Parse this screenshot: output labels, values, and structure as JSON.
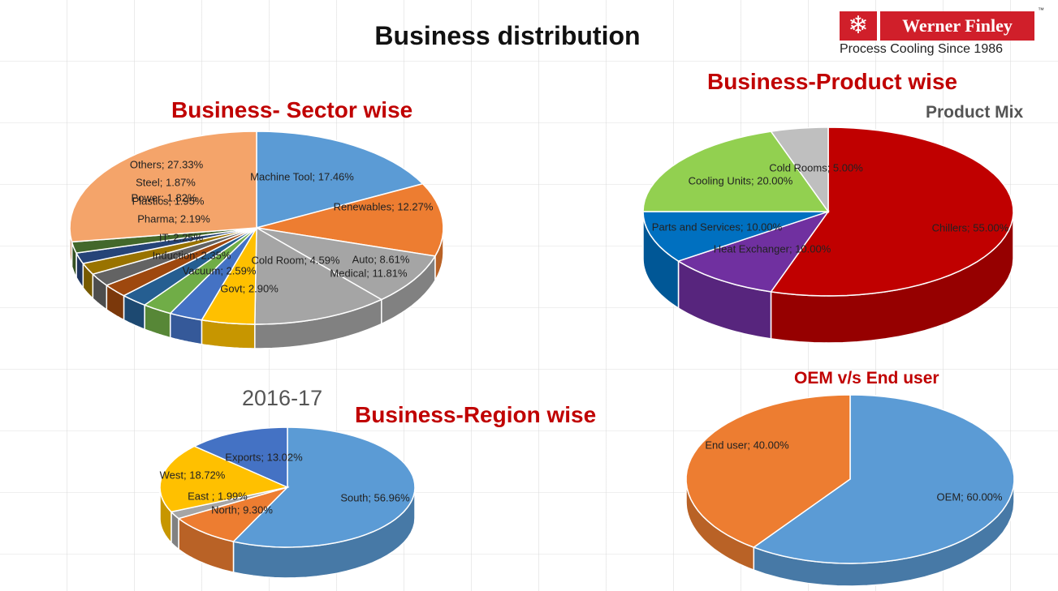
{
  "page": {
    "title": "Business distribution",
    "logo": {
      "name": "Werner Finley",
      "tagline": "Process Cooling Since 1986",
      "tm": "™"
    }
  },
  "chart_data": [
    {
      "type": "pie",
      "title": "Business- Sector wise",
      "labels": [
        "Machine Tool",
        "Renewables",
        "Auto",
        "Medical",
        "Cold Room",
        "Govt",
        "Vacuum",
        "Induction",
        "IT",
        "Pharma",
        "Plastics",
        "Power",
        "Steel",
        "Others"
      ],
      "values": [
        17.46,
        12.27,
        8.61,
        11.81,
        4.59,
        2.9,
        2.59,
        2.35,
        2.25,
        2.19,
        1.95,
        1.82,
        1.87,
        27.33
      ],
      "value_labels": [
        "Machine Tool; 17.46%",
        "Renewables; 12.27%",
        "Auto; 8.61%",
        "Medical; 11.81%",
        "Cold Room; 4.59%",
        "Govt; 2.90%",
        "Vacuum; 2.59%",
        "Induction; 2.35%",
        "IT; 2.25%",
        "Pharma; 2.19%",
        "Plastics; 1.95%",
        "Power; 1.82%",
        "Steel; 1.87%",
        "Others; 27.33%"
      ],
      "colors": [
        "#5b9bd5",
        "#ed7d31",
        "#a5a5a5",
        "#a5a5a5",
        "#ffc000",
        "#4472c4",
        "#70ad47",
        "#255e91",
        "#9e480e",
        "#636363",
        "#997300",
        "#264478",
        "#43682b",
        "#f4a46a"
      ]
    },
    {
      "type": "pie",
      "title": "Business-Product wise",
      "subtitle": "Product Mix",
      "labels": [
        "Chillers",
        "Heat Exchanger",
        "Parts and Services",
        "Cooling Units",
        "Cold Rooms"
      ],
      "values": [
        55.0,
        10.0,
        10.0,
        20.0,
        5.0
      ],
      "value_labels": [
        "Chillers; 55.00%",
        "Heat Exchanger; 10.00%",
        "Parts and Services; 10.00%",
        "Cooling Units; 20.00%",
        "Cold Rooms; 5.00%"
      ],
      "colors": [
        "#c00000",
        "#7030a0",
        "#0070c0",
        "#92d050",
        "#bfbfbf"
      ]
    },
    {
      "type": "pie",
      "title": "Business-Region wise",
      "subtitle": "2016-17",
      "labels": [
        "South",
        "North",
        "East",
        "West",
        "Exports"
      ],
      "values": [
        56.96,
        9.3,
        1.99,
        18.72,
        13.02
      ],
      "value_labels": [
        "South; 56.96%",
        "North; 9.30%",
        "East ; 1.99%",
        "West; 18.72%",
        "Exports; 13.02%"
      ],
      "colors": [
        "#5b9bd5",
        "#ed7d31",
        "#a5a5a5",
        "#ffc000",
        "#4472c4"
      ]
    },
    {
      "type": "pie",
      "title": "OEM v/s End user",
      "labels": [
        "OEM",
        "End user"
      ],
      "values": [
        60.0,
        40.0
      ],
      "value_labels": [
        "OEM; 60.00%",
        "End user; 40.00%"
      ],
      "colors": [
        "#5b9bd5",
        "#ed7d31"
      ]
    }
  ]
}
